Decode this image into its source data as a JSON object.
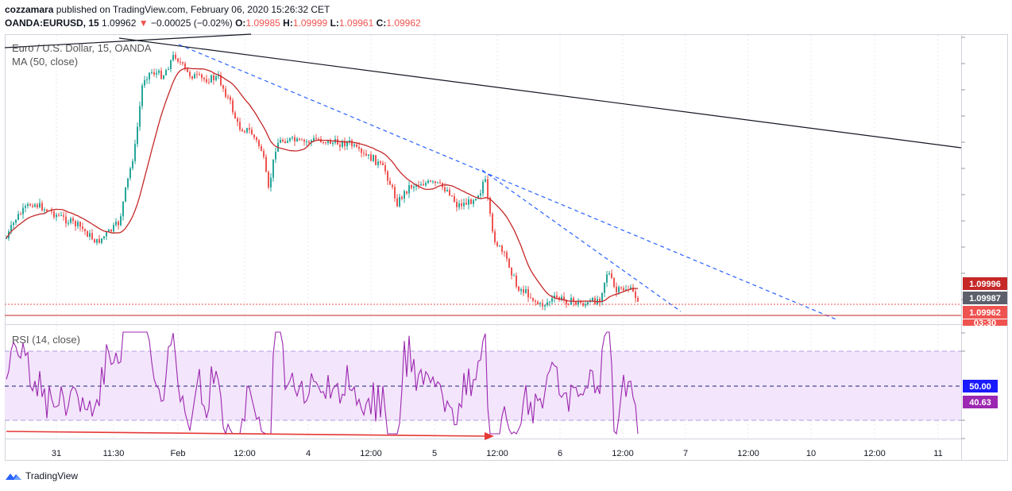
{
  "header": {
    "publisher": "cozzamara",
    "published_text": "published on TradingView.com, February 06, 2020 15:26:32 CET",
    "symbol": "OANDA:EURUSD, 15",
    "last": "1.09962",
    "change_arrow": "▼",
    "change": "−0.00025 (−0.02%)",
    "o_label": "O:",
    "o_value": "1.09985",
    "h_label": "H:",
    "h_value": "1.09999",
    "l_label": "L:",
    "l_value": "1.09961",
    "c_label": "C:",
    "c_value": "1.09962"
  },
  "legend": {
    "title": "Euro / U.S. Dollar, 15, OANDA",
    "ma": "MA (50, close)",
    "rsi": "RSI (14, close)"
  },
  "price_labels": {
    "high": "1.09996",
    "ma": "1.09987",
    "last": "1.09962",
    "countdown": "03:30",
    "rsi_mid": "50.00",
    "rsi_value": "40.63"
  },
  "footer": {
    "brand": "TradingView"
  },
  "colors": {
    "up": "#26a69a",
    "down": "#ef5350",
    "ma": "#c62828",
    "rsi": "#9c27b0",
    "rsi_band": "#f3e5fb",
    "trend": "#2962ff"
  },
  "chart_data": {
    "type": "candlestick",
    "title": "Euro / U.S. Dollar, 15, OANDA",
    "x_ticks": [
      "31",
      "11:30",
      "Feb",
      "12:00",
      "4",
      "12:00",
      "5",
      "12:00",
      "6",
      "12:00",
      "7",
      "12:00",
      "10",
      "12:00",
      "11"
    ],
    "price_range_approx": [
      1.0992,
      1.1068
    ],
    "ohlc_path_approx": [
      {
        "t": "31",
        "close": 1.1035
      },
      {
        "t": "11:30",
        "close": 1.1028
      },
      {
        "t": "Feb",
        "close": 1.1062
      },
      {
        "t": "12:00",
        "close": 1.105
      },
      {
        "t": "4",
        "close": 1.1045
      },
      {
        "t": "12:00",
        "close": 1.1032
      },
      {
        "t": "5",
        "close": 1.102
      },
      {
        "t": "12:00",
        "close": 1.1003
      },
      {
        "t": "6",
        "close": 1.0999
      },
      {
        "t": "12:00",
        "close": 1.09962
      }
    ],
    "ma_period": 50,
    "rsi_period": 14,
    "rsi_levels": [
      70,
      50,
      30
    ],
    "rsi_last": 40.63
  }
}
